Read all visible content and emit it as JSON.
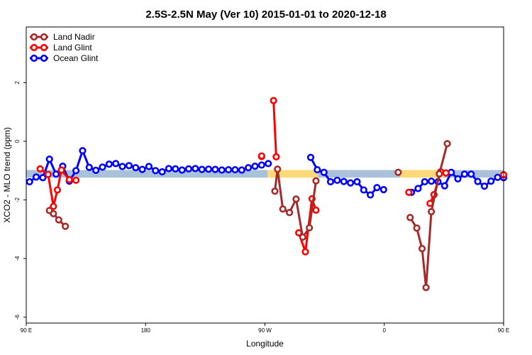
{
  "chart_data": {
    "type": "line",
    "title": "2.5S-2.5N May (Ver 10)   2015-01-01 to 2020-12-18",
    "xlabel": "Longitude",
    "ylabel": "XCO2 - MLO trend (ppm)",
    "xlim": [
      90,
      450
    ],
    "ylim": [
      -6.2,
      3.9
    ],
    "xticks": [
      {
        "value": 90,
        "label": "90 E"
      },
      {
        "value": 180,
        "label": "180"
      },
      {
        "value": 270,
        "label": "90 W"
      },
      {
        "value": 360,
        "label": "0"
      },
      {
        "value": 450,
        "label": "90 E"
      },
      {
        "value": 540,
        "label": "180"
      }
    ],
    "yticks": [
      {
        "value": 2,
        "label": "2"
      },
      {
        "value": 0,
        "label": "0"
      },
      {
        "value": -2,
        "label": "-2"
      },
      {
        "value": -4,
        "label": "-4"
      },
      {
        "value": -6,
        "label": "-6"
      }
    ],
    "legend": {
      "position": "top-left",
      "entries": [
        {
          "name": "Land Nadir",
          "color": "#a52a2a"
        },
        {
          "name": "Land Glint",
          "color": "#ff0000"
        },
        {
          "name": "Ocean Glint",
          "color": "#0000ff"
        }
      ]
    },
    "bands": [
      {
        "x": [
          90,
          272
        ],
        "y": [
          -1.24,
          -0.98
        ],
        "color": "#aac1da"
      },
      {
        "x": [
          272,
          310
        ],
        "y": [
          -1.24,
          -0.98
        ],
        "color": "#fdd978"
      },
      {
        "x": [
          310,
          333
        ],
        "y": [
          -1.24,
          -0.98
        ],
        "color": "#aac1da"
      },
      {
        "x": [
          333,
          372
        ],
        "y": [
          -1.24,
          -0.98
        ],
        "color": "#aac1da"
      },
      {
        "x": [
          372,
          405
        ],
        "y": [
          -1.24,
          -0.98
        ],
        "color": "#fdd978"
      },
      {
        "x": [
          405,
          450
        ],
        "y": [
          -1.24,
          -0.98
        ],
        "color": "#aac1da"
      }
    ],
    "series": [
      {
        "name": "Ocean Glint",
        "color": "#0000ff",
        "segments": [
          [
            [
              92.5,
              -1.38
            ],
            [
              97.5,
              -1.22
            ],
            [
              102.5,
              -1.24
            ],
            [
              107.5,
              -0.61
            ],
            [
              112.5,
              -1.12
            ],
            [
              117.5,
              -0.85
            ],
            [
              122.5,
              -1.36
            ],
            [
              127.5,
              -1.0
            ],
            [
              132.5,
              -0.32
            ],
            [
              137.5,
              -0.89
            ],
            [
              142.5,
              -0.99
            ],
            [
              147.5,
              -0.88
            ],
            [
              152.5,
              -0.78
            ],
            [
              157.5,
              -0.76
            ],
            [
              162.5,
              -0.86
            ],
            [
              167.5,
              -0.83
            ],
            [
              172.5,
              -0.9
            ],
            [
              177.5,
              -0.96
            ],
            [
              182.5,
              -0.86
            ],
            [
              187.5,
              -1.0
            ],
            [
              192.5,
              -1.04
            ],
            [
              197.5,
              -0.93
            ],
            [
              202.5,
              -0.94
            ],
            [
              207.5,
              -0.98
            ],
            [
              212.5,
              -0.94
            ],
            [
              217.5,
              -0.93
            ],
            [
              222.5,
              -0.96
            ],
            [
              227.5,
              -0.95
            ],
            [
              232.5,
              -0.96
            ],
            [
              237.5,
              -0.98
            ],
            [
              242.5,
              -0.97
            ],
            [
              247.5,
              -0.97
            ],
            [
              252.5,
              -0.98
            ],
            [
              257.5,
              -0.9
            ],
            [
              262.5,
              -0.85
            ],
            [
              267.5,
              -0.81
            ],
            [
              272.5,
              -0.76
            ]
          ],
          [
            [
              304.5,
              -0.55
            ],
            [
              309.5,
              -0.97
            ],
            [
              314.5,
              -1.06
            ],
            [
              319.5,
              -1.38
            ],
            [
              324.5,
              -1.33
            ],
            [
              329.5,
              -1.37
            ],
            [
              334.5,
              -1.42
            ],
            [
              339.5,
              -1.38
            ],
            [
              344.5,
              -1.66
            ],
            [
              349.5,
              -1.83
            ],
            [
              354.5,
              -1.58
            ],
            [
              359.5,
              -1.65
            ]
          ],
          [
            [
              380.5,
              -1.74
            ],
            [
              385.5,
              -1.61
            ],
            [
              390.5,
              -1.38
            ],
            [
              395.5,
              -1.36
            ],
            [
              400.5,
              -1.38
            ],
            [
              405.5,
              -1.52
            ],
            [
              410.5,
              -1.06
            ],
            [
              415.5,
              -1.28
            ],
            [
              420.5,
              -1.12
            ],
            [
              425.5,
              -1.12
            ],
            [
              430.5,
              -1.37
            ],
            [
              435.5,
              -1.53
            ],
            [
              440.5,
              -1.36
            ],
            [
              445.5,
              -1.23
            ]
          ],
          [
            [
              450,
              -1.24
            ]
          ]
        ]
      },
      {
        "name": "Land Glint",
        "color": "#ff0000",
        "segments": [
          [
            [
              100.5,
              -0.94
            ],
            [
              106.5,
              -1.13
            ],
            [
              110.5,
              -2.22
            ],
            [
              113.5,
              -1.66
            ],
            [
              116.5,
              -0.98
            ],
            [
              122.5,
              -1.31
            ],
            [
              127.5,
              -1.33
            ]
          ],
          [
            [
              267.5,
              -0.52
            ]
          ],
          [
            [
              267.5,
              -0.5
            ]
          ],
          [
            [
              276.5,
              1.39
            ],
            [
              278.5,
              -0.53
            ]
          ],
          [
            [
              295.5,
              -3.12
            ],
            [
              300.5,
              -3.77
            ],
            [
              305.5,
              -1.96
            ],
            [
              308.5,
              -2.35
            ]
          ],
          [
            [
              378.5,
              -1.74
            ]
          ],
          [
            [
              394.5,
              -2.12
            ],
            [
              397.5,
              -1.82
            ],
            [
              402.5,
              -1.04
            ],
            [
              406.5,
              -1.08
            ]
          ],
          [
            [
              450,
              -1.14
            ]
          ]
        ]
      },
      {
        "name": "Land Nadir",
        "color": "#a52a2a",
        "segments": [
          [
            [
              107.5,
              -2.36
            ],
            [
              110.5,
              -2.47
            ],
            [
              114.5,
              -2.68
            ],
            [
              119.5,
              -2.9
            ]
          ],
          [
            [
              277.5,
              -1.7
            ],
            [
              279.5,
              -0.95
            ],
            [
              283.5,
              -2.31
            ],
            [
              288.5,
              -2.43
            ],
            [
              293.5,
              -1.97
            ],
            [
              298.5,
              -3.27
            ],
            [
              303.5,
              -2.95
            ],
            [
              308.5,
              -1.35
            ]
          ],
          [
            [
              370.5,
              -1.06
            ]
          ],
          [
            [
              379.5,
              -2.6
            ],
            [
              384.5,
              -2.96
            ],
            [
              388.5,
              -3.66
            ],
            [
              391.5,
              -4.99
            ],
            [
              395.5,
              -2.4
            ],
            [
              401.5,
              -1.11
            ],
            [
              407.5,
              -0.08
            ]
          ]
        ]
      }
    ]
  }
}
